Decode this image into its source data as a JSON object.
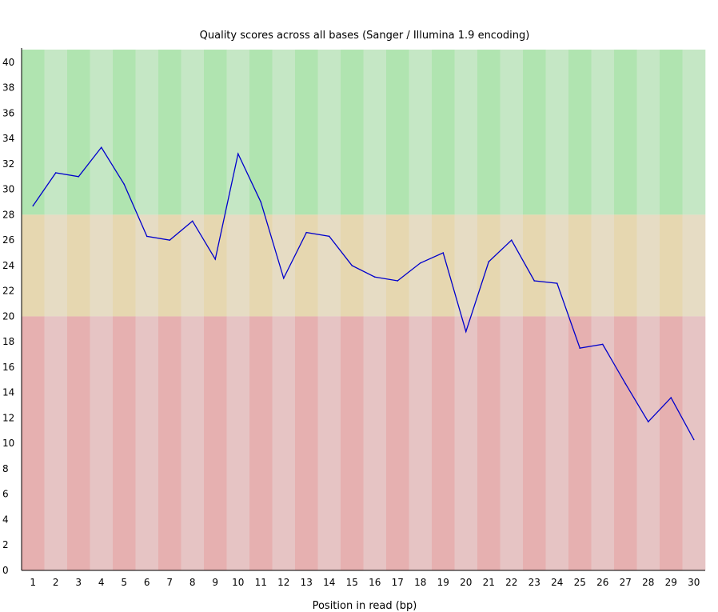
{
  "chart_data": {
    "type": "line",
    "title": "Quality scores across all bases (Sanger / Illumina 1.9 encoding)",
    "xlabel": "Position in read (bp)",
    "ylabel": "",
    "x": [
      1,
      2,
      3,
      4,
      5,
      6,
      7,
      8,
      9,
      10,
      11,
      12,
      13,
      14,
      15,
      16,
      17,
      18,
      19,
      20,
      21,
      22,
      23,
      24,
      25,
      26,
      27,
      28,
      29,
      30
    ],
    "x_tick_labels": [
      "1",
      "2",
      "3",
      "4",
      "5",
      "6",
      "7",
      "8",
      "9",
      "10",
      "11",
      "12",
      "13",
      "14",
      "15",
      "16",
      "17",
      "18",
      "19",
      "20",
      "21",
      "22",
      "23",
      "24",
      "25",
      "26",
      "27",
      "28",
      "29",
      "30"
    ],
    "y_tick_labels": [
      "0",
      "2",
      "4",
      "6",
      "8",
      "10",
      "12",
      "14",
      "16",
      "18",
      "20",
      "22",
      "24",
      "26",
      "28",
      "30",
      "32",
      "34",
      "36",
      "38",
      "40"
    ],
    "ylim": [
      0,
      41
    ],
    "series": [
      {
        "values": [
          28.7,
          31.3,
          31.0,
          33.3,
          30.4,
          26.3,
          26.0,
          27.5,
          24.5,
          32.8,
          29.0,
          23.0,
          26.6,
          26.3,
          24.0,
          23.1,
          22.8,
          24.2,
          25.0,
          18.8,
          24.3,
          26.0,
          22.8,
          22.6,
          17.5,
          17.8,
          14.7,
          11.7,
          13.6,
          10.3
        ],
        "color": "#0000cc"
      }
    ],
    "quality_bands": [
      {
        "from": 28,
        "to": 41,
        "color_dark": "#b0e4b0",
        "color_light": "#c5e7c5"
      },
      {
        "from": 20,
        "to": 28,
        "color_dark": "#e6d7b0",
        "color_light": "#e6dcc4"
      },
      {
        "from": 0,
        "to": 20,
        "color_dark": "#e6b0b0",
        "color_light": "#e6c4c4"
      }
    ],
    "grid": false,
    "legend": "none"
  }
}
